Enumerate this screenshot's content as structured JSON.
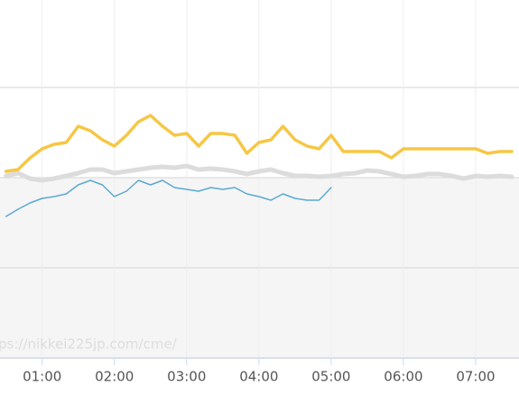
{
  "chart_data": {
    "type": "line",
    "watermark": "ps://nikkei225jp.com/cme/",
    "x": [
      30,
      40,
      50,
      60,
      70,
      80,
      90,
      100,
      110,
      120,
      130,
      140,
      150,
      160,
      170,
      180,
      190,
      200,
      210,
      220,
      230,
      240,
      250,
      260,
      270,
      280,
      290,
      300,
      310,
      320,
      330,
      340,
      350,
      360,
      370,
      380,
      390,
      400,
      410,
      420,
      430,
      440,
      450
    ],
    "xlim": [
      25,
      456
    ],
    "xticks": [
      {
        "value": 60,
        "label": "01:00"
      },
      {
        "value": 120,
        "label": "02:00"
      },
      {
        "value": 180,
        "label": "03:00"
      },
      {
        "value": 240,
        "label": "04:00"
      },
      {
        "value": 300,
        "label": "05:00"
      },
      {
        "value": 360,
        "label": "06:00"
      },
      {
        "value": 420,
        "label": "07:00"
      }
    ],
    "ylim": [
      0,
      397
    ],
    "yticks": [
      0,
      100,
      200,
      300
    ],
    "plot_band": [
      0,
      200
    ],
    "grid": true,
    "series": [
      {
        "color": "#dcdcdc",
        "width": 5,
        "values": [
          202,
          205,
          199,
          197,
          199,
          202,
          205,
          209,
          209,
          205,
          207,
          209,
          211,
          212,
          211,
          213,
          209,
          210,
          209,
          207,
          204,
          207,
          209,
          205,
          202,
          202,
          201,
          202,
          204,
          205,
          208,
          207,
          204,
          201,
          202,
          204,
          204,
          202,
          199,
          202,
          201,
          202,
          201
        ]
      },
      {
        "color": "#f6c744",
        "width": 3.5,
        "values": [
          207,
          209,
          222,
          232,
          237,
          239,
          257,
          252,
          242,
          235,
          247,
          262,
          269,
          257,
          247,
          249,
          235,
          249,
          249,
          247,
          227,
          239,
          242,
          257,
          242,
          235,
          232,
          247,
          229,
          229,
          229,
          229,
          222,
          232,
          232,
          232,
          232,
          232,
          232,
          232,
          227,
          229,
          229
        ]
      },
      {
        "color": "#5aa9d0",
        "width": 1.5,
        "values": [
          157,
          165,
          172,
          177,
          179,
          182,
          192,
          197,
          192,
          179,
          185,
          197,
          192,
          197,
          189,
          187,
          185,
          189,
          187,
          189,
          182,
          179,
          175,
          182,
          177,
          175,
          175,
          189,
          null,
          null,
          null,
          null,
          null,
          null,
          null,
          null,
          null,
          null,
          null,
          null,
          null,
          null,
          null
        ]
      }
    ]
  }
}
